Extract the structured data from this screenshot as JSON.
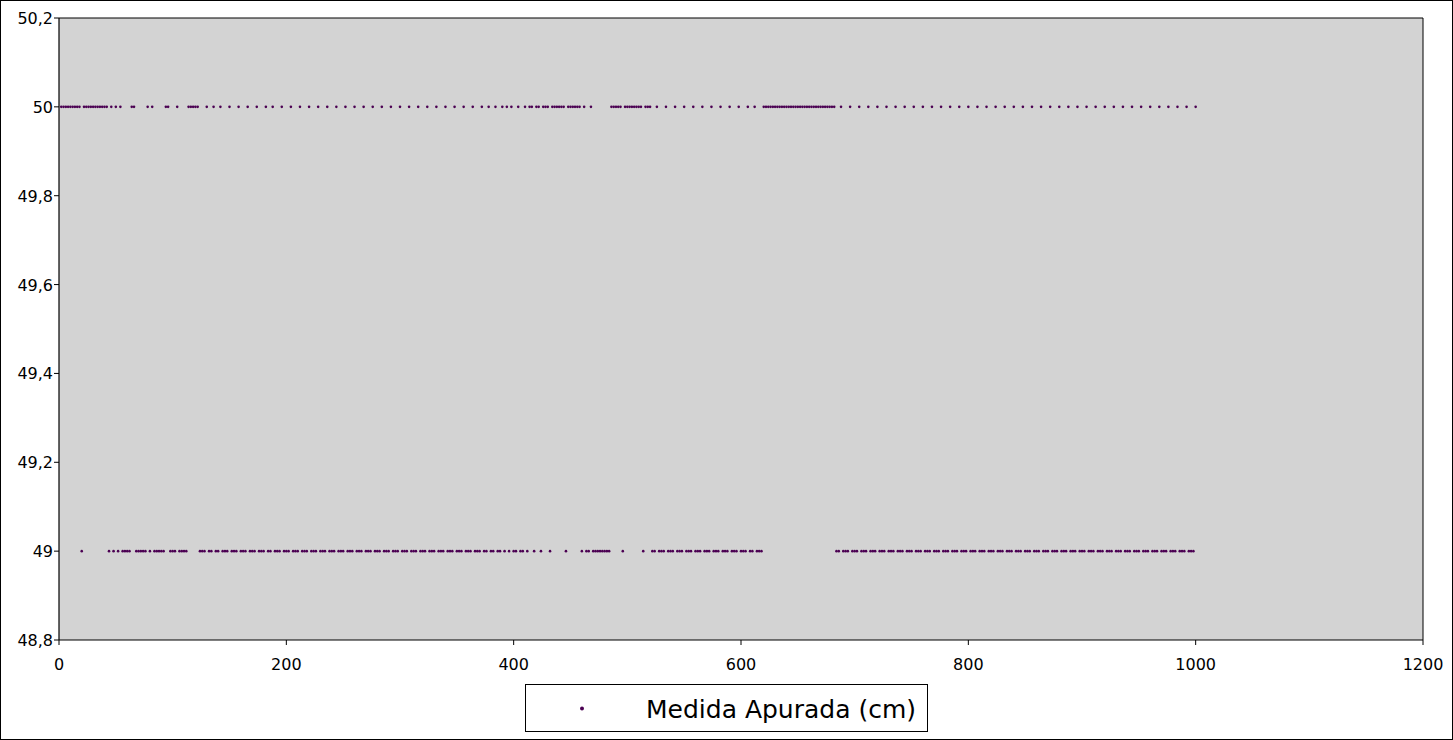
{
  "chart_data": {
    "type": "scatter",
    "xlim": [
      0,
      1200
    ],
    "xticks": [
      0,
      200,
      400,
      600,
      800,
      1000,
      1200
    ],
    "ylim": [
      48.8,
      50.2
    ],
    "yticks": [
      {
        "value": 48.8,
        "label": "48,8"
      },
      49,
      {
        "value": 49.2,
        "label": "49,2"
      },
      {
        "value": 49.4,
        "label": "49,4"
      },
      {
        "value": 49.6,
        "label": "49,6"
      },
      {
        "value": 49.8,
        "label": "49,8"
      },
      50,
      {
        "value": 50.2,
        "label": "50,2"
      }
    ],
    "grid": false,
    "legend": "bottom",
    "x": [
      2,
      4,
      6,
      8,
      10,
      12,
      14,
      16,
      18,
      20,
      22,
      24,
      26,
      28,
      30,
      32,
      34,
      36,
      38,
      40,
      42,
      44,
      46,
      48,
      50,
      52,
      54,
      56,
      58,
      60,
      62,
      64,
      66,
      68,
      70,
      72,
      74,
      76,
      78,
      80,
      82,
      84,
      86,
      88,
      90,
      92,
      94,
      96,
      98,
      100,
      102,
      104,
      106,
      108,
      110,
      112,
      114,
      116,
      118,
      120,
      122,
      124,
      126,
      128,
      130,
      132,
      134,
      136,
      138,
      140,
      142,
      144,
      146,
      148,
      150,
      152,
      154,
      156,
      158,
      160,
      162,
      164,
      166,
      168,
      170,
      172,
      174,
      176,
      178,
      180,
      182,
      184,
      186,
      188,
      190,
      192,
      194,
      196,
      198,
      200,
      202,
      204,
      206,
      208,
      210,
      212,
      214,
      216,
      218,
      220,
      222,
      224,
      226,
      228,
      230,
      232,
      234,
      236,
      238,
      240,
      242,
      244,
      246,
      248,
      250,
      252,
      254,
      256,
      258,
      260,
      262,
      264,
      266,
      268,
      270,
      272,
      274,
      276,
      278,
      280,
      282,
      284,
      286,
      288,
      290,
      292,
      294,
      296,
      298,
      300,
      302,
      304,
      306,
      308,
      310,
      312,
      314,
      316,
      318,
      320,
      322,
      324,
      326,
      328,
      330,
      332,
      334,
      336,
      338,
      340,
      342,
      344,
      346,
      348,
      350,
      352,
      354,
      356,
      358,
      360,
      362,
      364,
      366,
      368,
      370,
      372,
      374,
      376,
      378,
      380,
      382,
      384,
      386,
      388,
      390,
      392,
      394,
      396,
      398,
      400,
      402,
      404,
      406,
      408,
      410,
      412,
      414,
      416,
      418,
      420,
      422,
      424,
      426,
      428,
      430,
      432,
      434,
      436,
      438,
      440,
      442,
      444,
      446,
      448,
      450,
      452,
      454,
      456,
      458,
      460,
      462,
      464,
      466,
      468,
      470,
      472,
      474,
      476,
      478,
      480,
      482,
      484,
      486,
      488,
      490,
      492,
      494,
      496,
      498,
      500,
      502,
      504,
      506,
      508,
      510,
      512,
      514,
      516,
      518,
      520,
      522,
      524,
      526,
      528,
      530,
      532,
      534,
      536,
      538,
      540,
      542,
      544,
      546,
      548,
      550,
      552,
      554,
      556,
      558,
      560,
      562,
      564,
      566,
      568,
      570,
      572,
      574,
      576,
      578,
      580,
      582,
      584,
      586,
      588,
      590,
      592,
      594,
      596,
      598,
      600,
      602,
      604,
      606,
      608,
      610,
      612,
      614,
      616,
      618,
      620,
      622,
      624,
      626,
      628,
      630,
      632,
      634,
      636,
      638,
      640,
      642,
      644,
      646,
      648,
      650,
      652,
      654,
      656,
      658,
      660,
      662,
      664,
      666,
      668,
      670,
      672,
      674,
      676,
      678,
      680,
      682,
      684,
      686,
      688,
      690,
      692,
      694,
      696,
      698,
      700,
      702,
      704,
      706,
      708,
      710,
      712,
      714,
      716,
      718,
      720,
      722,
      724,
      726,
      728,
      730,
      732,
      734,
      736,
      738,
      740,
      742,
      744,
      746,
      748,
      750,
      752,
      754,
      756,
      758,
      760,
      762,
      764,
      766,
      768,
      770,
      772,
      774,
      776,
      778,
      780,
      782,
      784,
      786,
      788,
      790,
      792,
      794,
      796,
      798,
      800,
      802,
      804,
      806,
      808,
      810,
      812,
      814,
      816,
      818,
      820,
      822,
      824,
      826,
      828,
      830,
      832,
      834,
      836,
      838,
      840,
      842,
      844,
      846,
      848,
      850,
      852,
      854,
      856,
      858,
      860,
      862,
      864,
      866,
      868,
      870,
      872,
      874,
      876,
      878,
      880,
      882,
      884,
      886,
      888,
      890,
      892,
      894,
      896,
      898,
      900,
      902,
      904,
      906,
      908,
      910,
      912,
      914,
      916,
      918,
      920,
      922,
      924,
      926,
      928,
      930,
      932,
      934,
      936,
      938,
      940,
      942,
      944,
      946,
      948,
      950,
      952,
      954,
      956,
      958,
      960,
      962,
      964,
      966,
      968,
      970,
      972,
      974,
      976,
      978,
      980,
      982,
      984,
      986,
      988,
      990,
      992,
      994,
      996,
      998,
      1000
    ],
    "series": [
      {
        "name": "Medida Apurada (cm)",
        "color": "#4b0052",
        "marker": "circle",
        "values": [
          50,
          50,
          50,
          50,
          50,
          50,
          50,
          50,
          50,
          49,
          50,
          50,
          50,
          50,
          50,
          50,
          50,
          50,
          50,
          50,
          50,
          49,
          50,
          49,
          50,
          49,
          50,
          49,
          49,
          49,
          49,
          50,
          50,
          49,
          49,
          49,
          49,
          49,
          50,
          49,
          50,
          49,
          49,
          49,
          49,
          49,
          50,
          50,
          49,
          49,
          49,
          50,
          49,
          49,
          49,
          49,
          50,
          50,
          50,
          50,
          50,
          49,
          49,
          49,
          50,
          49,
          49,
          50,
          49,
          49,
          50,
          49,
          49,
          49,
          50,
          49,
          49,
          49,
          50,
          49,
          49,
          49,
          50,
          49,
          49,
          49,
          50,
          49,
          49,
          49,
          50,
          49,
          49,
          50,
          49,
          49,
          49,
          50,
          49,
          49,
          49,
          50,
          49,
          49,
          49,
          50,
          49,
          49,
          49,
          50,
          49,
          49,
          49,
          50,
          49,
          49,
          49,
          50,
          49,
          49,
          49,
          50,
          49,
          49,
          49,
          50,
          49,
          49,
          49,
          50,
          49,
          49,
          49,
          50,
          49,
          49,
          49,
          50,
          49,
          49,
          49,
          50,
          49,
          49,
          49,
          50,
          49,
          49,
          49,
          50,
          49,
          49,
          49,
          50,
          49,
          49,
          49,
          50,
          49,
          49,
          49,
          50,
          49,
          49,
          49,
          50,
          49,
          49,
          49,
          50,
          49,
          49,
          49,
          50,
          49,
          49,
          49,
          50,
          49,
          49,
          49,
          50,
          49,
          49,
          49,
          50,
          49,
          49,
          50,
          49,
          49,
          50,
          49,
          49,
          50,
          49,
          50,
          49,
          50,
          49,
          49,
          50,
          49,
          49,
          50,
          49,
          50,
          50,
          49,
          50,
          50,
          49,
          50,
          50,
          50,
          49,
          50,
          50,
          50,
          50,
          50,
          50,
          49,
          50,
          50,
          50,
          50,
          50,
          50,
          49,
          50,
          49,
          49,
          50,
          49,
          49,
          49,
          49,
          49,
          49,
          49,
          49,
          50,
          50,
          50,
          50,
          50,
          49,
          50,
          50,
          50,
          50,
          50,
          50,
          50,
          50,
          49,
          50,
          50,
          50,
          49,
          49,
          50,
          49,
          49,
          49,
          50,
          49,
          49,
          49,
          50,
          49,
          49,
          49,
          50,
          49,
          49,
          49,
          50,
          49,
          49,
          49,
          50,
          49,
          49,
          49,
          50,
          49,
          49,
          49,
          50,
          49,
          49,
          49,
          50,
          49,
          49,
          49,
          50,
          49,
          49,
          49,
          50,
          49,
          49,
          50,
          49,
          49,
          49,
          50,
          50,
          50,
          50,
          50,
          50,
          50,
          50,
          50,
          50,
          50,
          50,
          50,
          50,
          50,
          50,
          50,
          50,
          50,
          50,
          50,
          50,
          50,
          50,
          50,
          50,
          50,
          50,
          50,
          50,
          50,
          50,
          49,
          49,
          50,
          49,
          49,
          49,
          50,
          49,
          49,
          49,
          50,
          49,
          49,
          49,
          50,
          49,
          49,
          49,
          50,
          49,
          49,
          49,
          50,
          49,
          49,
          49,
          50,
          49,
          49,
          49,
          50,
          49,
          49,
          49,
          50,
          49,
          49,
          49,
          50,
          49,
          49,
          49,
          50,
          49,
          49,
          49,
          50,
          49,
          49,
          49,
          50,
          49,
          49,
          49,
          50,
          49,
          49,
          49,
          50,
          49,
          49,
          49,
          50,
          49,
          49,
          49,
          50,
          49,
          49,
          49,
          50,
          49,
          49,
          49,
          50,
          49,
          49,
          49,
          50,
          49,
          49,
          49,
          50,
          49,
          49,
          49,
          50,
          49,
          49,
          49,
          50,
          49,
          49,
          49,
          50,
          49,
          49,
          49,
          50,
          49,
          49,
          49,
          50,
          49,
          49,
          49,
          50,
          49,
          49,
          49,
          50,
          49,
          49,
          49,
          50,
          49,
          49,
          49,
          50,
          49,
          49,
          49,
          50,
          49,
          49,
          49,
          50,
          49,
          49,
          49,
          50,
          49,
          49,
          49,
          50,
          49,
          49,
          49,
          50,
          49,
          49,
          49,
          50,
          49,
          49,
          49,
          50,
          49,
          49,
          49,
          50,
          49,
          49,
          49,
          50,
          49,
          49,
          49,
          50
        ]
      }
    ]
  }
}
